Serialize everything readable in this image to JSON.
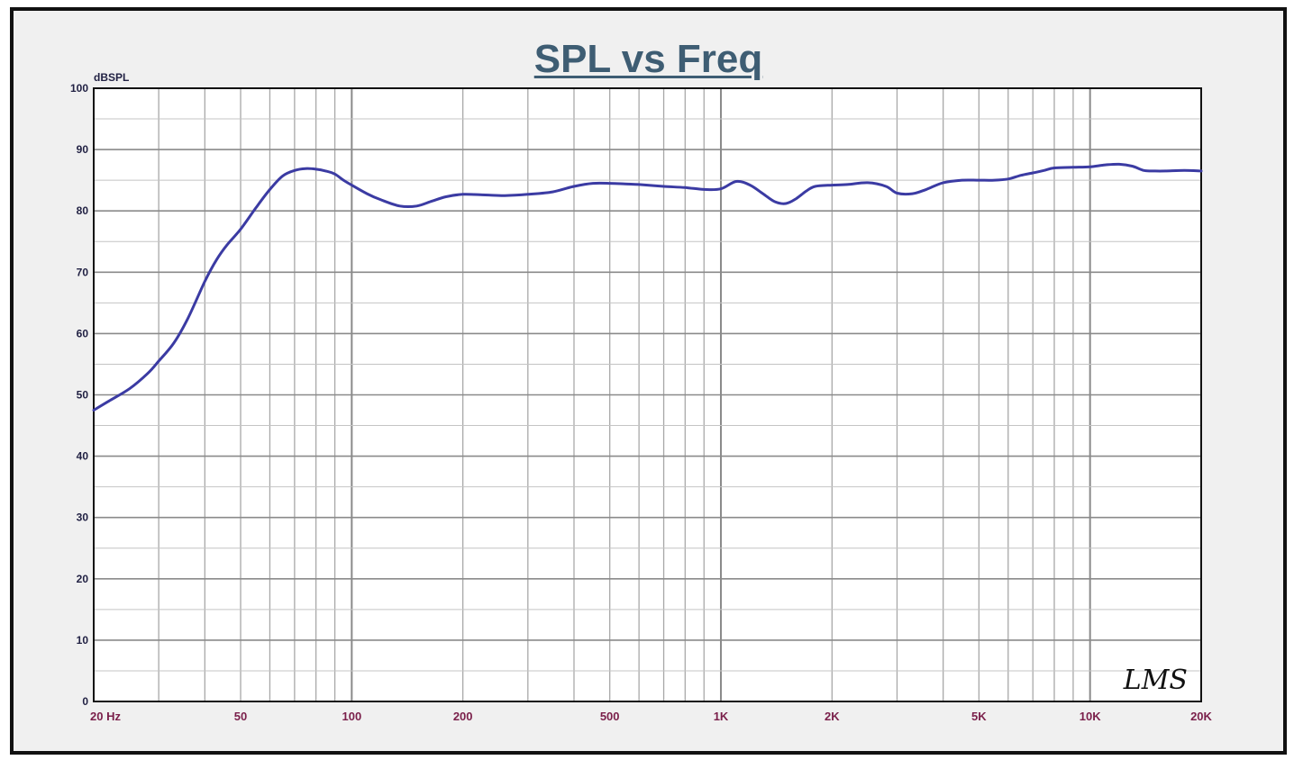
{
  "chart_data": {
    "type": "line",
    "title": "SPL vs Freq",
    "ylabel": "dBSPL",
    "xlabel": "",
    "x_scale": "log",
    "xlim": [
      20,
      20000
    ],
    "ylim": [
      0,
      100
    ],
    "grid": true,
    "y_ticks": [
      "0",
      "10",
      "20",
      "30",
      "40",
      "50",
      "60",
      "70",
      "80",
      "90",
      "100"
    ],
    "x_ticks": [
      {
        "value": 20,
        "label": "20  Hz"
      },
      {
        "value": 50,
        "label": "50"
      },
      {
        "value": 100,
        "label": "100"
      },
      {
        "value": 200,
        "label": "200"
      },
      {
        "value": 500,
        "label": "500"
      },
      {
        "value": 1000,
        "label": "1K"
      },
      {
        "value": 2000,
        "label": "2K"
      },
      {
        "value": 5000,
        "label": "5K"
      },
      {
        "value": 10000,
        "label": "10K"
      },
      {
        "value": 20000,
        "label": "20K"
      }
    ],
    "watermark": "LMS",
    "colors": {
      "line": "#3b3ba3",
      "grid": "#a8a8a8",
      "title": "#3e5d73",
      "x_tick_text": "#7a1f4a"
    },
    "series": [
      {
        "x": [
          20,
          22,
          25,
          28,
          30,
          33,
          36,
          40,
          43,
          46,
          50,
          55,
          60,
          65,
          70,
          75,
          80,
          85,
          90,
          95,
          100,
          110,
          120,
          135,
          150,
          165,
          180,
          200,
          230,
          260,
          300,
          350,
          400,
          450,
          500,
          550,
          600,
          700,
          800,
          900,
          1000,
          1100,
          1200,
          1300,
          1400,
          1500,
          1600,
          1700,
          1800,
          2000,
          2200,
          2500,
          2800,
          3000,
          3300,
          3600,
          4000,
          4500,
          5000,
          5500,
          6000,
          6500,
          7000,
          7500,
          8000,
          9000,
          10000,
          11000,
          12000,
          13000,
          14000,
          15000,
          16000,
          18000,
          20000
        ],
        "values": [
          47.5,
          49.0,
          51.0,
          53.5,
          55.5,
          58.5,
          62.5,
          68.5,
          72.0,
          74.5,
          77.0,
          80.5,
          83.5,
          85.7,
          86.6,
          86.9,
          86.8,
          86.5,
          86.0,
          85.0,
          84.2,
          82.8,
          81.8,
          80.8,
          80.8,
          81.6,
          82.3,
          82.7,
          82.6,
          82.5,
          82.7,
          83.1,
          84.0,
          84.5,
          84.5,
          84.4,
          84.3,
          84.0,
          83.8,
          83.5,
          83.6,
          84.8,
          84.2,
          82.8,
          81.5,
          81.2,
          82.0,
          83.2,
          84.0,
          84.2,
          84.3,
          84.6,
          84.0,
          82.9,
          82.8,
          83.5,
          84.6,
          85.0,
          85.0,
          85.0,
          85.2,
          85.8,
          86.2,
          86.6,
          87.0,
          87.1,
          87.2,
          87.5,
          87.6,
          87.3,
          86.6,
          86.5,
          86.5,
          86.6,
          86.5
        ]
      }
    ]
  }
}
